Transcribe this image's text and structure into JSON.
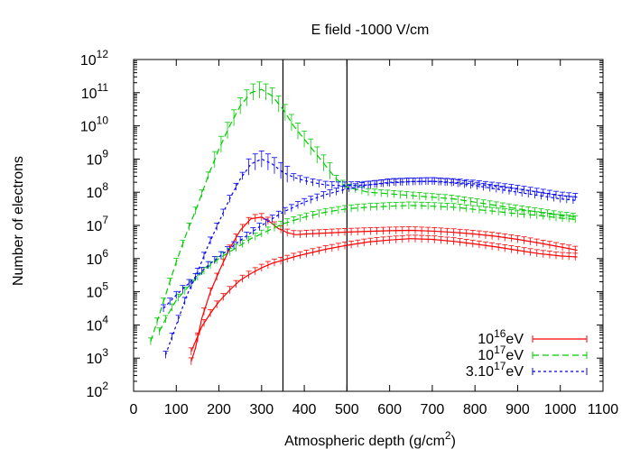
{
  "chart_data": {
    "type": "line",
    "title": "E field -1000 V/cm",
    "xlabel": "Atmospheric depth (g/cm",
    "xlabel_sup": "2",
    "xlabel_end": ")",
    "ylabel": "Number of electrons",
    "xlim": [
      0,
      1100
    ],
    "ylim_log10": [
      2,
      12
    ],
    "y_scale": "log",
    "x_ticks": [
      "0",
      "100",
      "200",
      "300",
      "400",
      "500",
      "600",
      "700",
      "800",
      "900",
      "1000",
      "1100"
    ],
    "y_ticks": [
      {
        "base": "10",
        "exp": "2"
      },
      {
        "base": "10",
        "exp": "3"
      },
      {
        "base": "10",
        "exp": "4"
      },
      {
        "base": "10",
        "exp": "5"
      },
      {
        "base": "10",
        "exp": "6"
      },
      {
        "base": "10",
        "exp": "7"
      },
      {
        "base": "10",
        "exp": "8"
      },
      {
        "base": "10",
        "exp": "9"
      },
      {
        "base": "10",
        "exp": "10"
      },
      {
        "base": "10",
        "exp": "11"
      },
      {
        "base": "10",
        "exp": "12"
      }
    ],
    "vertical_lines": [
      350,
      500
    ],
    "legend_position": "bottom-right",
    "series": [
      {
        "name_parts": [
          "10",
          "16",
          "eV"
        ],
        "color": "#ff0000",
        "dash": "",
        "curves": [
          {
            "x": [
              135,
              145,
              160,
              180,
              200,
              225,
              250,
              275,
              300,
              320,
              340,
              350,
              360,
              380,
              400,
              450,
              500,
              550,
              600,
              650,
              700,
              750,
              800,
              850,
              900,
              950,
              1000,
              1040
            ],
            "y": [
              2.9,
              3.3,
              4.2,
              5.0,
              5.6,
              6.3,
              6.85,
              7.2,
              7.25,
              7.1,
              6.9,
              6.85,
              6.78,
              6.72,
              6.74,
              6.77,
              6.8,
              6.82,
              6.84,
              6.85,
              6.83,
              6.79,
              6.74,
              6.67,
              6.58,
              6.47,
              6.35,
              6.25
            ]
          },
          {
            "x": [
              135,
              145,
              160,
              180,
              200,
              225,
              250,
              275,
              300,
              325,
              350,
              375,
              400,
              450,
              500,
              550,
              600,
              650,
              700,
              750,
              800,
              850,
              900,
              950,
              1000,
              1040
            ],
            "y": [
              3.2,
              3.5,
              3.95,
              4.35,
              4.7,
              5.05,
              5.35,
              5.55,
              5.72,
              5.86,
              5.95,
              6.05,
              6.13,
              6.28,
              6.4,
              6.5,
              6.56,
              6.6,
              6.58,
              6.52,
              6.44,
              6.35,
              6.25,
              6.15,
              6.08,
              6.05
            ]
          }
        ]
      },
      {
        "name_parts": [
          "10",
          "17",
          "eV"
        ],
        "color": "#00cc00",
        "dash": "7 4",
        "curves": [
          {
            "x": [
              40,
              60,
              80,
              100,
              125,
              150,
              175,
              200,
              225,
              250,
              275,
              300,
              325,
              350,
              375,
              400,
              425,
              450,
              475,
              500,
              550,
              600,
              650,
              700,
              750,
              800,
              850,
              900,
              950,
              1000,
              1040
            ],
            "y": [
              3.5,
              4.3,
              5.1,
              5.9,
              6.8,
              7.6,
              8.5,
              9.3,
              10.0,
              10.6,
              11.0,
              11.1,
              10.9,
              10.5,
              10.0,
              9.6,
              9.2,
              8.8,
              8.4,
              8.15,
              8.0,
              7.95,
              7.9,
              7.85,
              7.8,
              7.7,
              7.6,
              7.5,
              7.4,
              7.3,
              7.25
            ]
          },
          {
            "x": [
              60,
              80,
              100,
              125,
              150,
              175,
              200,
              225,
              250,
              275,
              300,
              325,
              350,
              375,
              400,
              450,
              500,
              550,
              600,
              650,
              700,
              750,
              800,
              850,
              900,
              950,
              1000,
              1040
            ],
            "y": [
              3.8,
              4.3,
              4.75,
              5.1,
              5.45,
              5.75,
              6.0,
              6.2,
              6.4,
              6.6,
              6.75,
              6.9,
              7.05,
              7.15,
              7.25,
              7.4,
              7.5,
              7.55,
              7.58,
              7.6,
              7.58,
              7.55,
              7.48,
              7.42,
              7.35,
              7.3,
              7.22,
              7.18
            ]
          }
        ]
      },
      {
        "name_parts": [
          "3.10",
          "17",
          "eV"
        ],
        "color": "#0000ff",
        "dash": "3 3",
        "curves": [
          {
            "x": [
              75,
              100,
              125,
              150,
              175,
              200,
              225,
              250,
              275,
              300,
              325,
              350,
              375,
              400,
              425,
              450,
              475,
              500,
              550,
              600,
              650,
              700,
              750,
              800,
              850,
              900,
              950,
              1000,
              1040
            ],
            "y": [
              3.1,
              4.0,
              4.9,
              5.6,
              6.4,
              7.1,
              7.8,
              8.4,
              8.85,
              9.0,
              8.85,
              8.6,
              8.45,
              8.35,
              8.28,
              8.22,
              8.2,
              8.2,
              8.22,
              8.28,
              8.32,
              8.33,
              8.3,
              8.25,
              8.18,
              8.1,
              8.0,
              7.9,
              7.85
            ]
          },
          {
            "x": [
              70,
              100,
              125,
              150,
              175,
              200,
              225,
              250,
              275,
              300,
              325,
              350,
              375,
              400,
              450,
              500,
              550,
              600,
              650,
              700,
              750,
              800,
              850,
              900,
              950,
              1000,
              1040
            ],
            "y": [
              4.5,
              4.9,
              5.2,
              5.5,
              5.8,
              6.05,
              6.3,
              6.55,
              6.78,
              7.0,
              7.2,
              7.4,
              7.55,
              7.7,
              7.93,
              8.1,
              8.22,
              8.3,
              8.32,
              8.33,
              8.28,
              8.2,
              8.1,
              8.0,
              7.9,
              7.8,
              7.75
            ]
          }
        ]
      }
    ]
  }
}
